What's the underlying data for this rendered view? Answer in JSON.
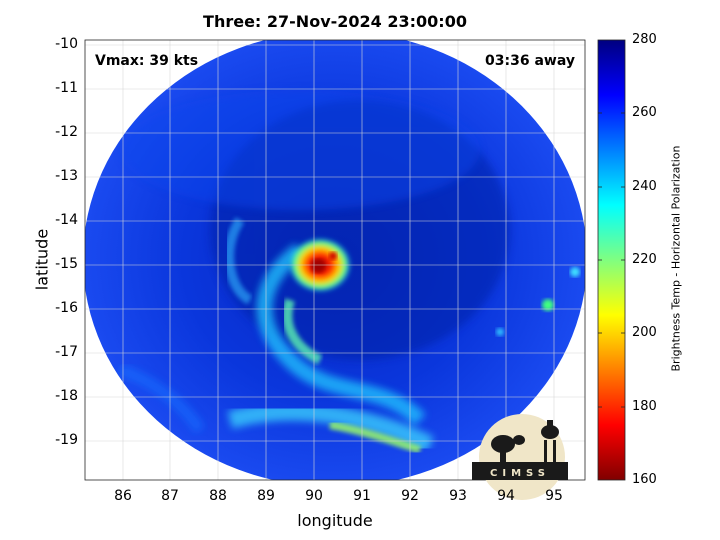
{
  "title": "Three: 27-Nov-2024 23:00:00",
  "vmax": "Vmax: 39 kts",
  "away": "03:36 away",
  "xlabel": "longitude",
  "ylabel": "latitude",
  "colorbar_label": "Brightness Temp - Horizontal Polarization",
  "logo_text": "CIMSS",
  "chart_data": {
    "type": "heatmap",
    "title": "Three: 27-Nov-2024 23:00:00",
    "xlabel": "longitude",
    "ylabel": "latitude",
    "xlim": [
      85.2,
      95.5
    ],
    "ylim": [
      -19.8,
      -9.8
    ],
    "xticks": [
      "86",
      "87",
      "88",
      "89",
      "90",
      "91",
      "92",
      "93",
      "94",
      "95"
    ],
    "yticks": [
      "-10",
      "-11",
      "-12",
      "-13",
      "-14",
      "-15",
      "-16",
      "-17",
      "-18",
      "-19"
    ],
    "colorbar": {
      "label": "Brightness Temp - Horizontal Polarization",
      "range": [
        160,
        280
      ],
      "ticks": [
        "280",
        "260",
        "240",
        "220",
        "200",
        "180",
        "160"
      ],
      "colormap": "jet"
    },
    "grid": true,
    "storm_center": {
      "lon": 90.1,
      "lat": -15.1
    },
    "swath_center": {
      "lon": 90.0,
      "lat": -14.8
    }
  },
  "colors": {
    "background": "#ffffff",
    "swath_base": "#0a34d8",
    "swath_dark": "#061a9e",
    "core": "#cc0000"
  }
}
